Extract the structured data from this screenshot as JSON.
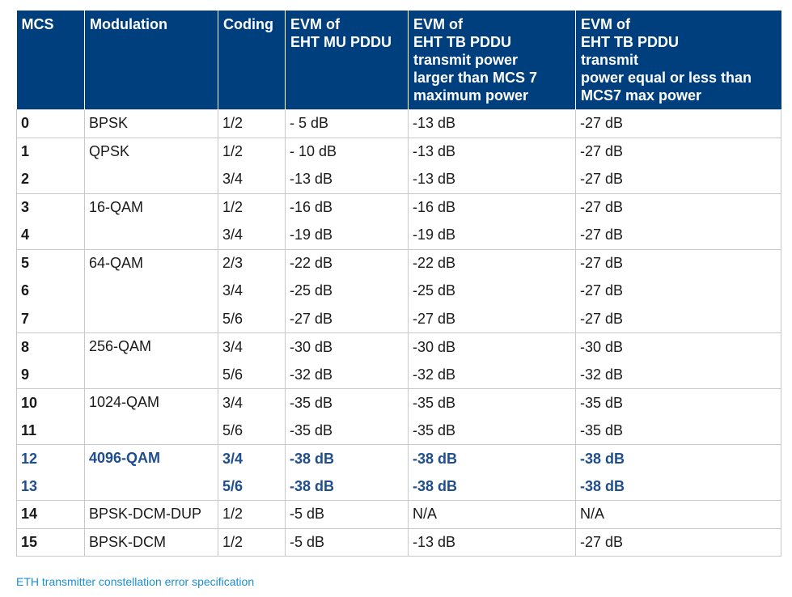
{
  "table": {
    "headers": {
      "mcs": "MCS",
      "modulation": "Modulation",
      "coding": "Coding",
      "evm_mu": [
        "EVM of",
        "EHT MU PDDU"
      ],
      "evm_tb_large": [
        "EVM of",
        "EHT TB PDDU",
        "transmit power",
        "larger than MCS 7",
        "maximum power"
      ],
      "evm_tb_small": [
        "EVM of",
        "EHT TB PDDU",
        "transmit",
        "power equal or less than",
        "MCS7 max power"
      ]
    },
    "rows": [
      {
        "mcs": "0",
        "modulation": "BPSK",
        "coding": "1/2",
        "evm_mu": "- 5 dB",
        "evm_tb_large": "-13 dB",
        "evm_tb_small": "-27 dB"
      },
      {
        "mcs": "1",
        "modulation": "QPSK",
        "coding": "1/2",
        "evm_mu": "- 10 dB",
        "evm_tb_large": "-13 dB",
        "evm_tb_small": "-27 dB"
      },
      {
        "mcs": "2",
        "modulation": "",
        "coding": "3/4",
        "evm_mu": "-13 dB",
        "evm_tb_large": "-13 dB",
        "evm_tb_small": "-27 dB"
      },
      {
        "mcs": "3",
        "modulation": "16-QAM",
        "coding": "1/2",
        "evm_mu": "-16 dB",
        "evm_tb_large": "-16 dB",
        "evm_tb_small": "-27 dB"
      },
      {
        "mcs": "4",
        "modulation": "",
        "coding": "3/4",
        "evm_mu": "-19 dB",
        "evm_tb_large": "-19 dB",
        "evm_tb_small": "-27 dB"
      },
      {
        "mcs": "5",
        "modulation": "64-QAM",
        "coding": "2/3",
        "evm_mu": "-22 dB",
        "evm_tb_large": "-22 dB",
        "evm_tb_small": "-27 dB"
      },
      {
        "mcs": "6",
        "modulation": "",
        "coding": "3/4",
        "evm_mu": "-25 dB",
        "evm_tb_large": "-25 dB",
        "evm_tb_small": "-27 dB"
      },
      {
        "mcs": "7",
        "modulation": "",
        "coding": "5/6",
        "evm_mu": "-27 dB",
        "evm_tb_large": "-27 dB",
        "evm_tb_small": "-27 dB"
      },
      {
        "mcs": "8",
        "modulation": "256-QAM",
        "coding": "3/4",
        "evm_mu": "-30 dB",
        "evm_tb_large": "-30 dB",
        "evm_tb_small": "-30 dB"
      },
      {
        "mcs": "9",
        "modulation": "",
        "coding": "5/6",
        "evm_mu": "-32 dB",
        "evm_tb_large": "-32 dB",
        "evm_tb_small": "-32 dB"
      },
      {
        "mcs": "10",
        "modulation": "1024-QAM",
        "coding": "3/4",
        "evm_mu": "-35 dB",
        "evm_tb_large": "-35 dB",
        "evm_tb_small": "-35 dB"
      },
      {
        "mcs": "11",
        "modulation": "",
        "coding": "5/6",
        "evm_mu": "-35 dB",
        "evm_tb_large": "-35 dB",
        "evm_tb_small": "-35 dB"
      },
      {
        "mcs": "12",
        "modulation": "4096-QAM",
        "coding": "3/4",
        "evm_mu": "-38 dB",
        "evm_tb_large": "-38 dB",
        "evm_tb_small": "-38 dB"
      },
      {
        "mcs": "13",
        "modulation": "",
        "coding": "5/6",
        "evm_mu": "-38 dB",
        "evm_tb_large": "-38 dB",
        "evm_tb_small": "-38 dB"
      },
      {
        "mcs": "14",
        "modulation": "BPSK-DCM-DUP",
        "coding": "1/2",
        "evm_mu": "-5 dB",
        "evm_tb_large": "N/A",
        "evm_tb_small": "N/A"
      },
      {
        "mcs": "15",
        "modulation": "BPSK-DCM",
        "coding": "1/2",
        "evm_mu": "-5 dB",
        "evm_tb_large": "-13 dB",
        "evm_tb_small": "-27 dB"
      }
    ]
  },
  "caption": "ETH transmitter constellation error specification",
  "colors": {
    "header_bg": "#003f7d",
    "highlight_text": "#1f4e8c",
    "caption_text": "#1a8fd6"
  }
}
